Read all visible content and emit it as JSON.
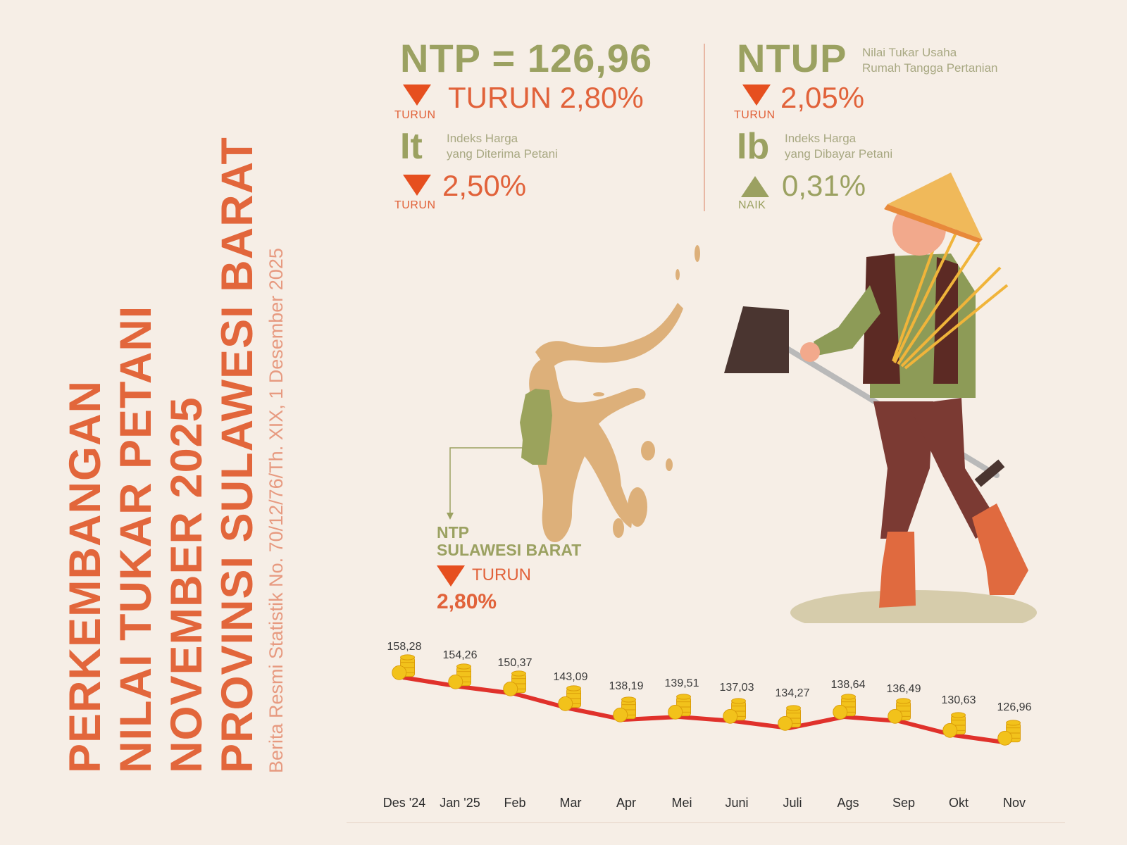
{
  "title": {
    "lines": [
      "PERKEMBANGAN",
      "NILAI TUKAR PETANI",
      "NOVEMBER 2025",
      "PROVINSI SULAWESI BARAT"
    ],
    "subtitle": "Berita Resmi Statistik No. 70/12/76/Th. XIX, 1 Desember 2025"
  },
  "ntp": {
    "headline": "NTP = 126,96",
    "change_text": "TURUN 2,80%",
    "direction_label": "TURUN",
    "direction": "down"
  },
  "it": {
    "abbr": "It",
    "desc_line1": "Indeks Harga",
    "desc_line2": "yang Diterima Petani",
    "change_text": "2,50%",
    "direction_label": "TURUN",
    "direction": "down"
  },
  "ntup": {
    "abbr": "NTUP",
    "desc_line1": "Nilai Tukar Usaha",
    "desc_line2": "Rumah Tangga Pertanian",
    "change_text": "2,05%",
    "direction_label": "TURUN",
    "direction": "down"
  },
  "ib": {
    "abbr": "Ib",
    "desc_line1": "Indeks Harga",
    "desc_line2": "yang Dibayar Petani",
    "change_text": "0,31%",
    "direction_label": "NAIK",
    "direction": "up"
  },
  "map_callout": {
    "line1": "NTP",
    "line2": "SULAWESI BARAT",
    "direction_label": "TURUN",
    "change_text": "2,80%"
  },
  "colors": {
    "background": "#f6eee6",
    "title_orange": "#e2663b",
    "olive": "#9ba161",
    "down_red": "#e64f1f",
    "line_red": "#e0312b",
    "map_tan": "#ddb07a",
    "map_highlight": "#9ba35c",
    "coin_gold": "#f5c518"
  },
  "chart_data": {
    "type": "line",
    "title": "NTP Sulawesi Barat Des 2024 - Nov 2025",
    "categories": [
      "Des '24",
      "Jan '25",
      "Feb",
      "Mar",
      "Apr",
      "Mei",
      "Juni",
      "Juli",
      "Ags",
      "Sep",
      "Okt",
      "Nov"
    ],
    "series": [
      {
        "name": "NTP",
        "values": [
          158.28,
          154.26,
          150.37,
          143.09,
          138.19,
          139.51,
          137.03,
          134.27,
          138.64,
          136.49,
          130.63,
          126.96
        ],
        "labels": [
          "158,28",
          "154,26",
          "150,37",
          "143,09",
          "138,19",
          "139,51",
          "137,03",
          "134,27",
          "138,64",
          "136,49",
          "130,63",
          "126,96"
        ]
      }
    ],
    "xlabel": "",
    "ylabel": "",
    "grid": false,
    "legend": "none",
    "marker": "coin-stack"
  }
}
